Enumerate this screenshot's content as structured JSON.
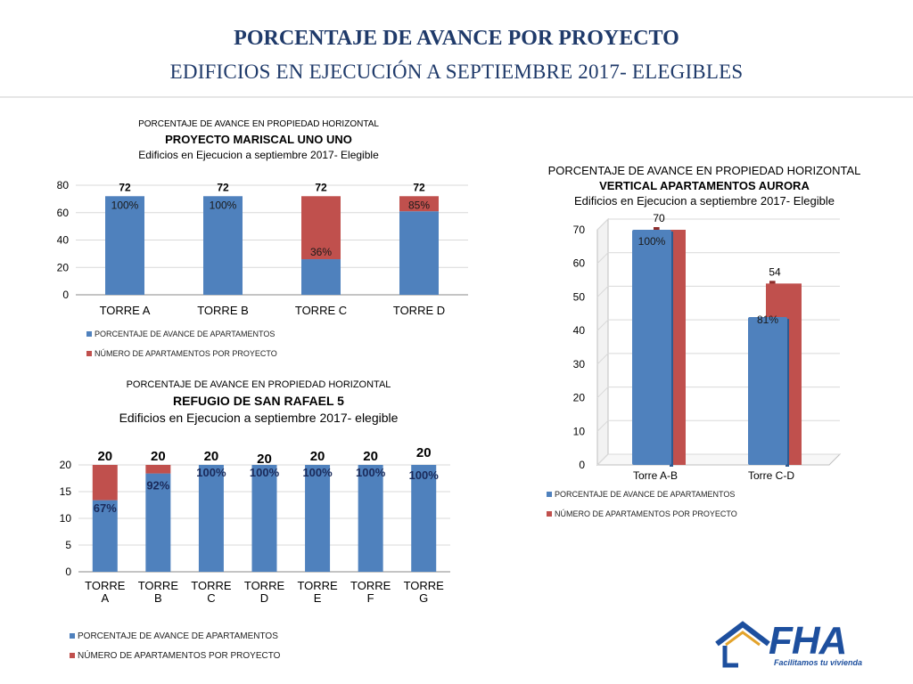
{
  "page": {
    "title": "PORCENTAJE DE AVANCE POR PROYECTO",
    "subtitle": "EDIFICIOS EN EJECUCIÓN A SEPTIEMBRE 2017- ELEGIBLES"
  },
  "colors": {
    "blue": "#4f81bd",
    "red": "#c0504d",
    "title": "#1f3a6a"
  },
  "logo": {
    "text": "FHA",
    "tagline": "Facilitamos tu vivienda",
    "icon": "house-icon"
  },
  "chart_data": [
    {
      "id": "mariscal",
      "type": "bar",
      "stacked": true,
      "title_line1": "PORCENTAJE DE AVANCE EN PROPIEDAD HORIZONTAL",
      "title_line2": "PROYECTO MARISCAL UNO UNO",
      "title_line3": "Edificios en Ejecucion a septiembre 2017- Elegible",
      "categories": [
        "TORRE A",
        "TORRE B",
        "TORRE C",
        "TORRE D"
      ],
      "totals": [
        72,
        72,
        72,
        72
      ],
      "total_labels": [
        "72",
        "72",
        "72",
        "72"
      ],
      "series": [
        {
          "name": "PORCENTAJE DE AVANCE DE APARTAMENTOS",
          "values": [
            72,
            72,
            26,
            61
          ],
          "labels": [
            "100%",
            "100%",
            "36%",
            "85%"
          ]
        },
        {
          "name": "NÚMERO DE APARTAMENTOS POR PROYECTO",
          "values": [
            0,
            0,
            46,
            11
          ]
        }
      ],
      "ylim": [
        0,
        80
      ],
      "yticks": [
        0,
        20,
        40,
        60,
        80
      ],
      "ytick_labels": [
        "0",
        "20",
        "40",
        "60",
        "80"
      ],
      "grid": true,
      "legend": "bottom-left"
    },
    {
      "id": "refugio",
      "type": "bar",
      "stacked": true,
      "title_line1": "PORCENTAJE DE AVANCE EN PROPIEDAD HORIZONTAL",
      "title_line2": "REFUGIO DE SAN RAFAEL 5",
      "title_line3": "Edificios en Ejecucion a septiembre 2017- elegible",
      "categories": [
        [
          "TORRE",
          "A"
        ],
        [
          "TORRE",
          "B"
        ],
        [
          "TORRE",
          "C"
        ],
        [
          "TORRE",
          "D"
        ],
        [
          "TORRE",
          "E"
        ],
        [
          "TORRE",
          "F"
        ],
        [
          "TORRE",
          "G"
        ]
      ],
      "totals": [
        20,
        20,
        20,
        20,
        20,
        20,
        20
      ],
      "total_labels": [
        "20",
        "20",
        "20",
        "20",
        "20",
        "20",
        "20"
      ],
      "series": [
        {
          "name": "PORCENTAJE DE AVANCE DE APARTAMENTOS",
          "values": [
            13.4,
            18.4,
            20,
            20,
            20,
            20,
            20
          ],
          "labels": [
            "67%",
            "92%",
            "100%",
            "100%",
            "100%",
            "100%",
            "100%"
          ]
        },
        {
          "name": "NÚMERO DE APARTAMENTOS POR PROYECTO",
          "values": [
            6.6,
            1.6,
            0,
            0,
            0,
            0,
            0
          ]
        }
      ],
      "ylim": [
        0,
        20
      ],
      "yticks": [
        0,
        5,
        10,
        15,
        20
      ],
      "ytick_labels": [
        "0",
        "5",
        "10",
        "15",
        "20"
      ],
      "grid": true,
      "legend": "bottom-left"
    },
    {
      "id": "aurora",
      "type": "bar",
      "style": "3d-clustered",
      "title_line1": "PORCENTAJE DE AVANCE EN PROPIEDAD HORIZONTAL",
      "title_line2": "VERTICAL APARTAMENTOS AURORA",
      "title_line3": "Edificios en Ejecucion a  septiembre 2017- Elegible",
      "categories": [
        "Torre A-B",
        "Torre C-D"
      ],
      "totals": [
        70,
        54
      ],
      "total_labels": [
        "70",
        "54"
      ],
      "series": [
        {
          "name": "PORCENTAJE DE AVANCE DE APARTAMENTOS",
          "values": [
            70,
            44
          ],
          "labels": [
            "100%",
            "81%"
          ]
        },
        {
          "name": "NÚMERO DE APARTAMENTOS POR PROYECTO",
          "values": [
            70,
            54
          ]
        }
      ],
      "ylim": [
        0,
        70
      ],
      "yticks": [
        0,
        10,
        20,
        30,
        40,
        50,
        60,
        70
      ],
      "ytick_labels": [
        "0",
        "10",
        "20",
        "30",
        "40",
        "50",
        "60",
        "70"
      ],
      "grid": true,
      "legend": "bottom-left"
    }
  ]
}
